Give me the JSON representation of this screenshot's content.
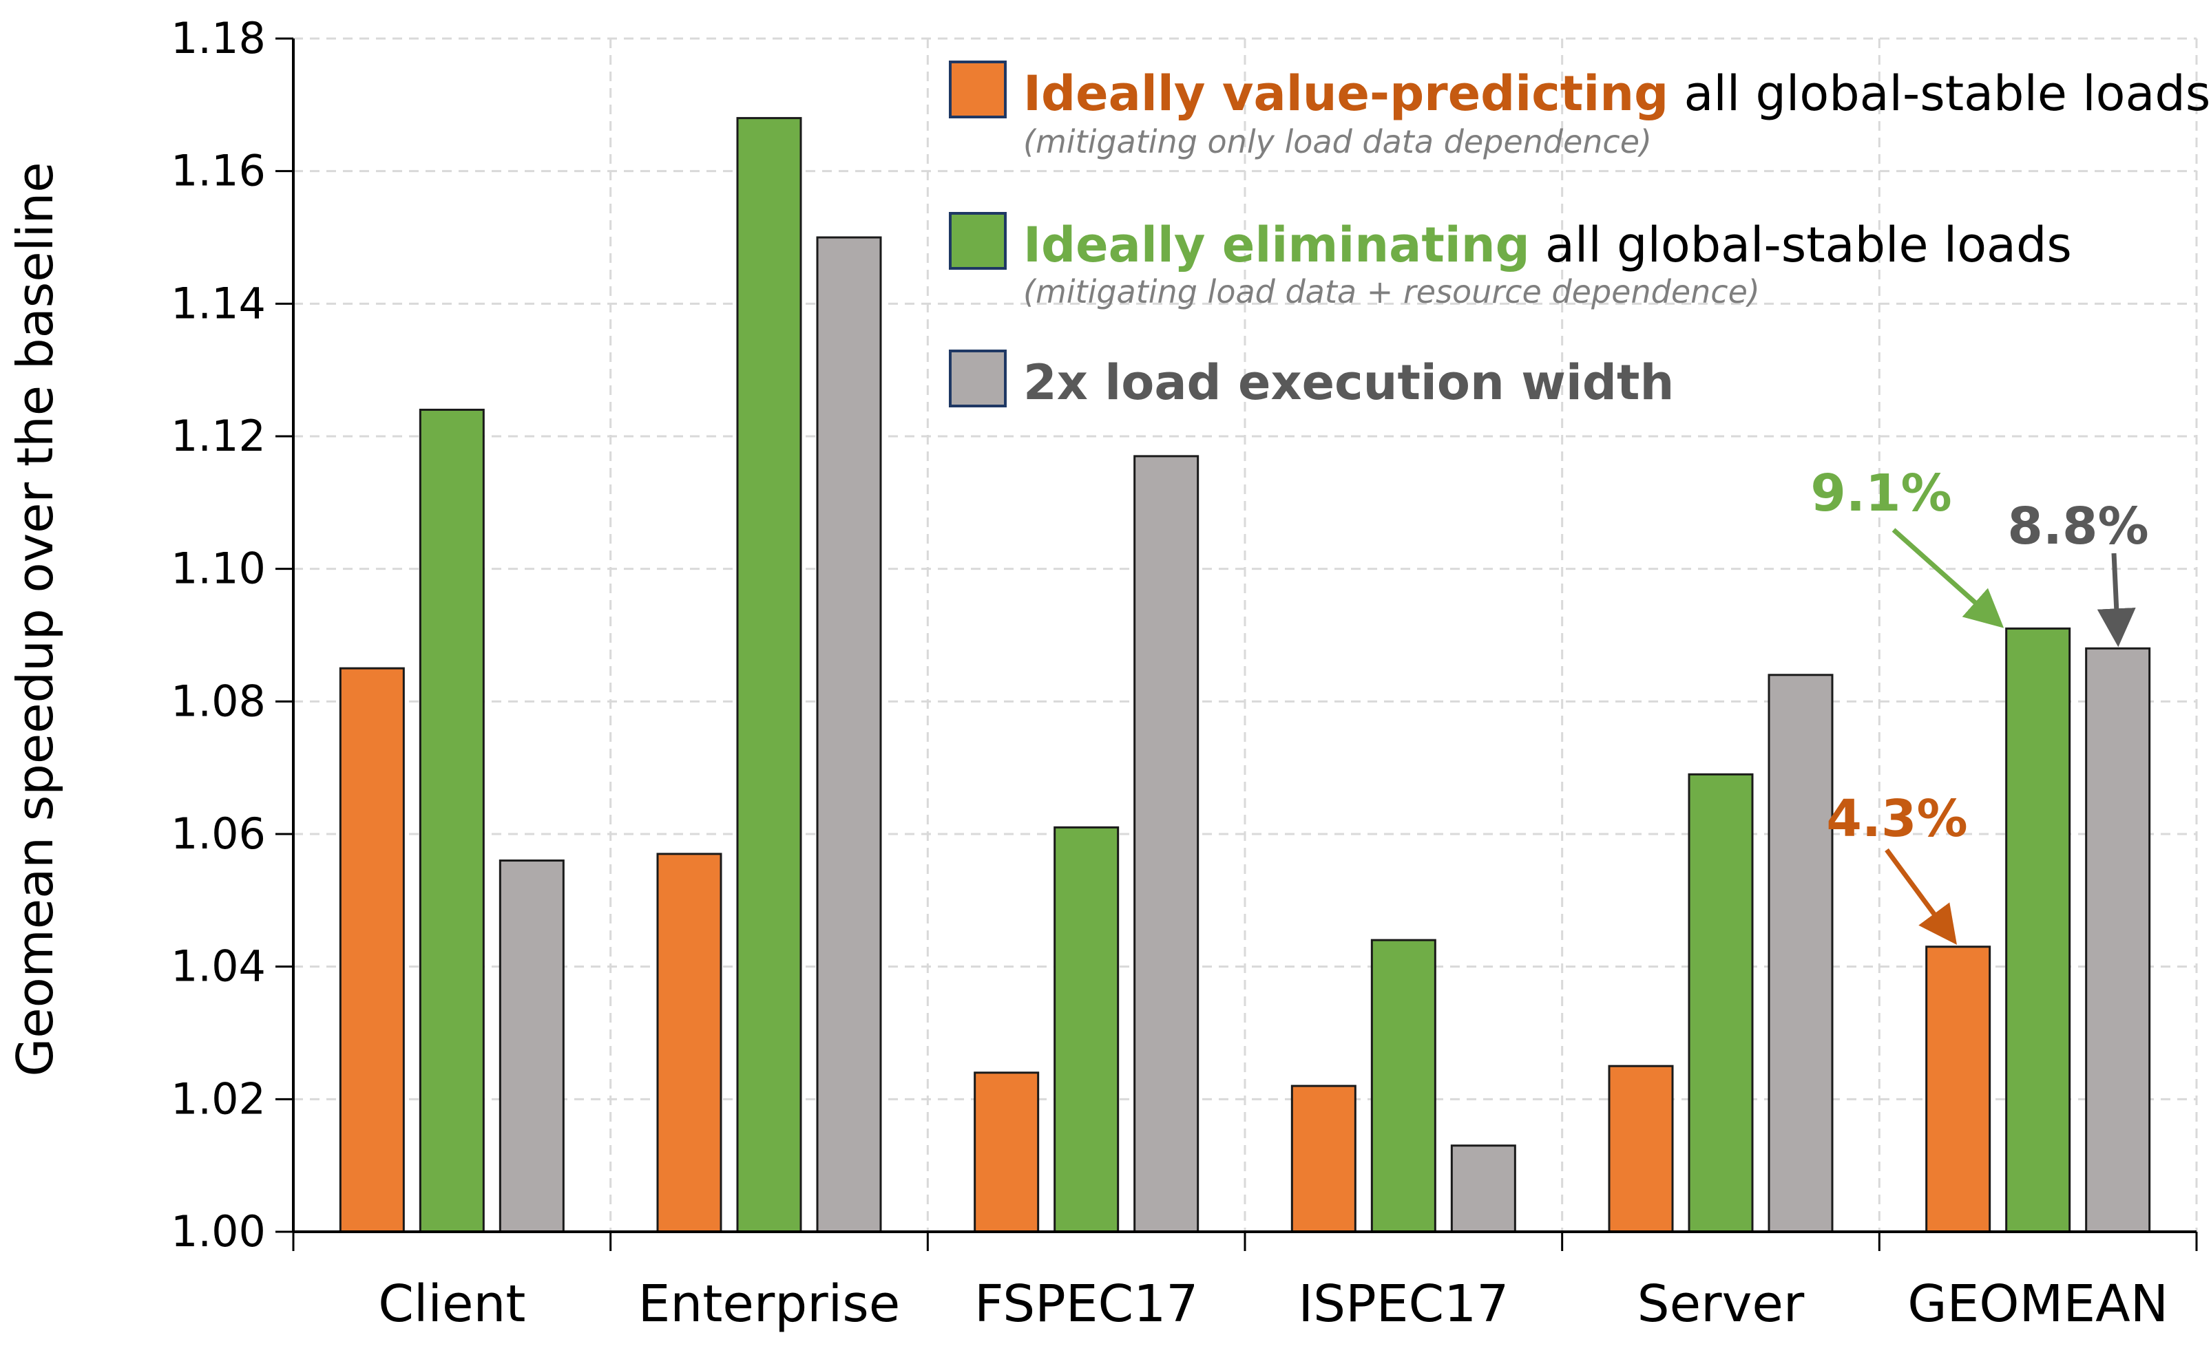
{
  "chart_data": {
    "type": "bar",
    "ylabel": "Geomean speedup over the baseline",
    "xlabel": "",
    "ylim": [
      1.0,
      1.18
    ],
    "yticks": [
      "1.00",
      "1.02",
      "1.04",
      "1.06",
      "1.08",
      "1.10",
      "1.12",
      "1.14",
      "1.16",
      "1.18"
    ],
    "grid": true,
    "legend_position": "top-right",
    "categories": [
      "Client",
      "Enterprise",
      "FSPEC17",
      "ISPEC17",
      "Server",
      "GEOMEAN"
    ],
    "series": [
      {
        "name": "Ideally value-predicting",
        "legend_rest": " all global-stable loads",
        "legend_note": "(mitigating only load data dependence)",
        "color": "#ED7D31",
        "legend_color": "#C55A11",
        "values": [
          1.085,
          1.057,
          1.024,
          1.022,
          1.025,
          1.043
        ]
      },
      {
        "name": "Ideally eliminating",
        "legend_rest": " all global-stable loads",
        "legend_note": "(mitigating load data + resource dependence)",
        "color": "#70AD47",
        "legend_color": "#70AD47",
        "values": [
          1.124,
          1.168,
          1.061,
          1.044,
          1.069,
          1.091
        ]
      },
      {
        "name": "2x load execution width",
        "legend_rest": "",
        "legend_note": "",
        "color": "#AEAAAA",
        "legend_color": "#595959",
        "values": [
          1.056,
          1.15,
          1.117,
          1.013,
          1.084,
          1.088
        ]
      }
    ],
    "annotations": [
      {
        "text": "9.1%",
        "series": 1,
        "category": 5,
        "color": "#70AD47"
      },
      {
        "text": "8.8%",
        "series": 2,
        "category": 5,
        "color": "#595959"
      },
      {
        "text": "4.3%",
        "series": 0,
        "category": 5,
        "color": "#C55A11"
      }
    ]
  }
}
